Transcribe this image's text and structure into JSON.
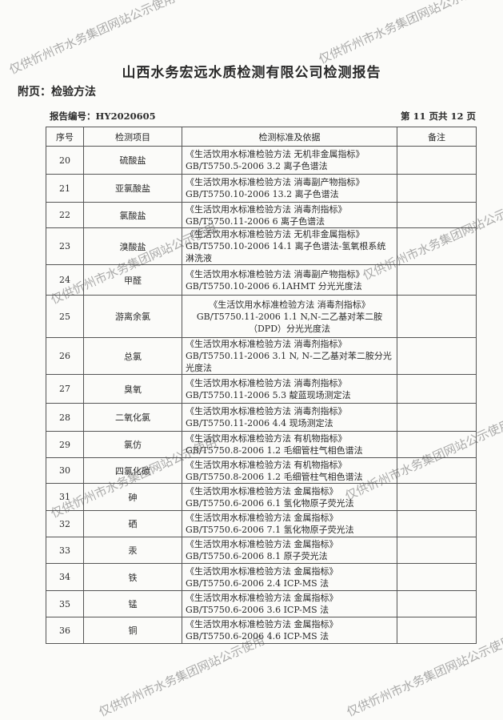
{
  "title": "山西水务宏远水质检测有限公司检测报告",
  "appendix": "附页：检验方法",
  "report_no": "报告编号：HY2020605",
  "page_no": "第 11 页共 12 页",
  "watermark": "仅供忻州市水务集团网站公示使用",
  "table": {
    "headers": [
      "序号",
      "检测项目",
      "检测标准及依据",
      "备注"
    ],
    "rows": [
      {
        "no": "20",
        "item": "硫酸盐",
        "method": "《生活饮用水标准检验方法 无机非金属指标》 GB/T5750.5-2006  3.2 离子色谱法",
        "remark": ""
      },
      {
        "no": "21",
        "item": "亚氯酸盐",
        "method": "《生活饮用水标准检验方法 消毒副产物指标》 GB/T5750.10-2006  13.2 离子色谱法",
        "remark": ""
      },
      {
        "no": "22",
        "item": "氯酸盐",
        "method": "《生活饮用水标准检验方法 消毒剂指标》 GB/T5750.11-2006  6 离子色谱法",
        "remark": ""
      },
      {
        "no": "23",
        "item": "溴酸盐",
        "method": "《生活饮用水标准检验方法 无机非金属指标》 GB/T5750.10-2006  14.1 离子色谱法-氢氧根系统淋洗液",
        "remark": ""
      },
      {
        "no": "24",
        "item": "甲醛",
        "method": "《生活饮用水标准检验方法 消毒副产物指标》 GB/T5750.10-2006  6.1AHMT 分光光度法",
        "remark": ""
      },
      {
        "no": "25",
        "item": "游离余氯",
        "method": "《生活饮用水标准检验方法 消毒剂指标》 GB/T5750.11-2006 1.1 N,N-二乙基对苯二胺（DPD）分光光度法",
        "remark": ""
      },
      {
        "no": "26",
        "item": "总氯",
        "method": "《生活饮用水标准检验方法 消毒剂指标》 GB/T5750.11-2006  3.1 N, N-二乙基对苯二胺分光光度法",
        "remark": ""
      },
      {
        "no": "27",
        "item": "臭氧",
        "method": "《生活饮用水标准检验方法 消毒剂指标》 GB/T5750.11-2006  5.3 靛蓝现场测定法",
        "remark": ""
      },
      {
        "no": "28",
        "item": "二氧化氯",
        "method": "《生活饮用水标准检验方法 消毒剂指标》 GB/T5750.11-2006  4.4 现场测定法",
        "remark": ""
      },
      {
        "no": "29",
        "item": "氯仿",
        "method": "《生活饮用水标准检验方法 有机物指标》 GB/T5750.8-2006  1.2 毛细管柱气相色谱法",
        "remark": ""
      },
      {
        "no": "30",
        "item": "四氯化碳",
        "method": "《生活饮用水标准检验方法 有机物指标》 GB/T5750.8-2006  1.2 毛细管柱气相色谱法",
        "remark": ""
      },
      {
        "no": "31",
        "item": "砷",
        "method": "《生活饮用水标准检验方法 金属指标》 GB/T5750.6-2006  6.1 氢化物原子荧光法",
        "remark": ""
      },
      {
        "no": "32",
        "item": "硒",
        "method": "《生活饮用水标准检验方法 金属指标》 GB/T5750.6-2006  7.1 氢化物原子荧光法",
        "remark": ""
      },
      {
        "no": "33",
        "item": "汞",
        "method": "《生活饮用水标准检验方法 金属指标》 GB/T5750.6-2006  8.1 原子荧光法",
        "remark": ""
      },
      {
        "no": "34",
        "item": "铁",
        "method": "《生活饮用水标准检验方法 金属指标》 GB/T5750.6-2006  2.4 ICP-MS 法",
        "remark": ""
      },
      {
        "no": "35",
        "item": "锰",
        "method": "《生活饮用水标准检验方法 金属指标》 GB/T5750.6-2006  3.6 ICP-MS 法",
        "remark": ""
      },
      {
        "no": "36",
        "item": "铜",
        "method": "《生活饮用水标准检验方法 金属指标》 GB/T5750.6-2006  4.6 ICP-MS 法",
        "remark": ""
      }
    ]
  }
}
